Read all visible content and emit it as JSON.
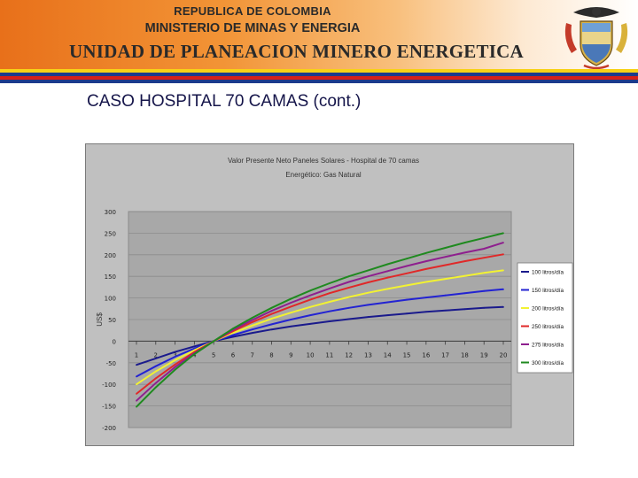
{
  "header": {
    "line1": "REPUBLICA DE COLOMBIA",
    "line2": "MINISTERIO DE MINAS Y ENERGIA",
    "line3": "UNIDAD DE PLANEACION MINERO ENERGETICA",
    "stripe_colors": [
      "#f7d117",
      "#1c3a8c",
      "#d4201a",
      "#1c3a8c"
    ]
  },
  "slide": {
    "title": "CASO HOSPITAL 70 CAMAS (cont.)"
  },
  "chart_data": {
    "type": "line",
    "title": "Valor Presente Neto Paneles Solares - Hospital de 70 camas",
    "subtitle": "Energético: Gas Natural",
    "xlabel": "",
    "ylabel": "US$",
    "categories": [
      "1",
      "2",
      "3",
      "4",
      "5",
      "6",
      "7",
      "8",
      "9",
      "10",
      "11",
      "12",
      "13",
      "14",
      "15",
      "16",
      "17",
      "18",
      "19",
      "20"
    ],
    "ylim": [
      -200,
      300
    ],
    "yticks": [
      300,
      250,
      200,
      150,
      100,
      50,
      0,
      -50,
      -100,
      -150,
      -200
    ],
    "grid": true,
    "legend": "right",
    "series": [
      {
        "name": "100 litros/día",
        "color": "#1a1a8c",
        "values": [
          -55,
          -40,
          -25,
          -12,
          0,
          10,
          19,
          27,
          34,
          40,
          46,
          51,
          56,
          60,
          64,
          68,
          71,
          74,
          77,
          79
        ]
      },
      {
        "name": "150 litros/día",
        "color": "#2323d2",
        "values": [
          -82,
          -58,
          -36,
          -17,
          0,
          14,
          27,
          39,
          50,
          60,
          69,
          77,
          84,
          90,
          96,
          101,
          106,
          111,
          116,
          120
        ]
      },
      {
        "name": "200 litros/día",
        "color": "#f2f232",
        "values": [
          -100,
          -70,
          -44,
          -21,
          0,
          19,
          36,
          52,
          66,
          79,
          91,
          102,
          112,
          121,
          129,
          137,
          144,
          151,
          158,
          164
        ]
      },
      {
        "name": "250 litros/día",
        "color": "#e02828",
        "values": [
          -122,
          -86,
          -54,
          -25,
          0,
          23,
          44,
          63,
          80,
          96,
          111,
          124,
          136,
          147,
          157,
          167,
          176,
          185,
          193,
          201
        ]
      },
      {
        "name": "275 litros/día",
        "color": "#8e1f8e",
        "values": [
          -138,
          -97,
          -60,
          -28,
          0,
          26,
          49,
          70,
          89,
          106,
          122,
          137,
          150,
          162,
          174,
          185,
          195,
          205,
          214,
          228
        ]
      },
      {
        "name": "300 litros/día",
        "color": "#1f8a1f",
        "values": [
          -152,
          -107,
          -66,
          -30,
          0,
          29,
          54,
          77,
          98,
          117,
          134,
          150,
          164,
          178,
          191,
          204,
          216,
          228,
          239,
          250
        ]
      }
    ]
  }
}
